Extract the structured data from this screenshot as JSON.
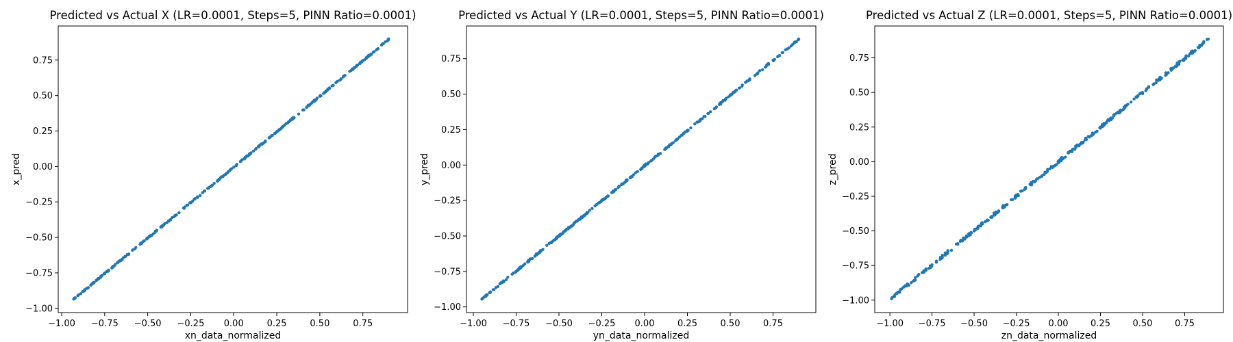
{
  "chart_data": [
    {
      "type": "scatter",
      "title": "Predicted vs Actual X (LR=0.0001, Steps=5, PINN Ratio=0.0001)",
      "xlabel": "xn_data_normalized",
      "ylabel": "x_pred",
      "xlim": [
        -1.02,
        1.01
      ],
      "ylim": [
        -1.03,
        0.99
      ],
      "xticks": [
        -1.0,
        -0.75,
        -0.5,
        -0.25,
        0.0,
        0.25,
        0.5,
        0.75
      ],
      "yticks": [
        -1.0,
        -0.75,
        -0.5,
        -0.25,
        0.0,
        0.25,
        0.5,
        0.75
      ],
      "xtick_labels": [
        "−1.00",
        "−0.75",
        "−0.50",
        "−0.25",
        "0.00",
        "0.25",
        "0.50",
        "0.75"
      ],
      "ytick_labels": [
        "−1.00",
        "−0.75",
        "−0.50",
        "−0.25",
        "0.00",
        "0.25",
        "0.50",
        "0.75"
      ],
      "color": "#1f77b4",
      "grid": false,
      "fit": {
        "x_min": -0.93,
        "x_max": 0.9,
        "slope": 1.0,
        "intercept": -0.005,
        "noise": 0.004,
        "count": 330
      },
      "points": [
        [
          -0.93,
          -0.935
        ],
        [
          -0.75,
          -0.755
        ],
        [
          -0.5,
          -0.505
        ],
        [
          -0.25,
          -0.255
        ],
        [
          0.0,
          -0.005
        ],
        [
          0.25,
          0.245
        ],
        [
          0.5,
          0.495
        ],
        [
          0.75,
          0.745
        ],
        [
          0.9,
          0.895
        ]
      ]
    },
    {
      "type": "scatter",
      "title": "Predicted vs Actual Y (LR=0.0001, Steps=5, PINN Ratio=0.0001)",
      "xlabel": "yn_data_normalized",
      "ylabel": "y_pred",
      "xlim": [
        -1.04,
        1.0
      ],
      "ylim": [
        -1.04,
        0.98
      ],
      "xticks": [
        -1.0,
        -0.75,
        -0.5,
        -0.25,
        0.0,
        0.25,
        0.5,
        0.75
      ],
      "yticks": [
        -1.0,
        -0.75,
        -0.5,
        -0.25,
        0.0,
        0.25,
        0.5,
        0.75
      ],
      "xtick_labels": [
        "−1.00",
        "−0.75",
        "−0.50",
        "−0.25",
        "0.00",
        "0.25",
        "0.50",
        "0.75"
      ],
      "ytick_labels": [
        "−1.00",
        "−0.75",
        "−0.50",
        "−0.25",
        "0.00",
        "0.25",
        "0.50",
        "0.75"
      ],
      "color": "#1f77b4",
      "grid": false,
      "fit": {
        "x_min": -0.95,
        "x_max": 0.9,
        "slope": 0.99,
        "intercept": -0.005,
        "noise": 0.005,
        "count": 330
      },
      "points": [
        [
          -0.95,
          -0.945
        ],
        [
          -0.75,
          -0.75
        ],
        [
          -0.5,
          -0.5
        ],
        [
          -0.25,
          -0.25
        ],
        [
          0.0,
          0.0
        ],
        [
          0.25,
          0.245
        ],
        [
          0.5,
          0.49
        ],
        [
          0.75,
          0.74
        ],
        [
          0.9,
          0.885
        ]
      ]
    },
    {
      "type": "scatter",
      "title": "Predicted vs Actual Z (LR=0.0001, Steps=5, PINN Ratio=0.0001)",
      "xlabel": "zn_data_normalized",
      "ylabel": "z_pred",
      "xlim": [
        -1.09,
        0.98
      ],
      "ylim": [
        -1.09,
        0.98
      ],
      "xticks": [
        -1.0,
        -0.75,
        -0.5,
        -0.25,
        0.0,
        0.25,
        0.5,
        0.75
      ],
      "yticks": [
        -1.0,
        -0.75,
        -0.5,
        -0.25,
        0.0,
        0.25,
        0.5,
        0.75
      ],
      "xtick_labels": [
        "−1.00",
        "−0.75",
        "−0.50",
        "−0.25",
        "0.00",
        "0.25",
        "0.50",
        "0.75"
      ],
      "ytick_labels": [
        "−1.00",
        "−0.75",
        "−0.50",
        "−0.25",
        "0.00",
        "0.25",
        "0.50",
        "0.75"
      ],
      "color": "#1f77b4",
      "grid": false,
      "fit": {
        "x_min": -0.99,
        "x_max": 0.89,
        "slope": 0.995,
        "intercept": 0.0,
        "noise": 0.01,
        "count": 330
      },
      "points": [
        [
          -0.99,
          -0.99
        ],
        [
          -0.75,
          -0.745
        ],
        [
          -0.5,
          -0.5
        ],
        [
          -0.25,
          -0.25
        ],
        [
          0.0,
          0.0
        ],
        [
          0.25,
          0.25
        ],
        [
          0.5,
          0.5
        ],
        [
          0.75,
          0.745
        ],
        [
          0.89,
          0.885
        ]
      ]
    }
  ]
}
